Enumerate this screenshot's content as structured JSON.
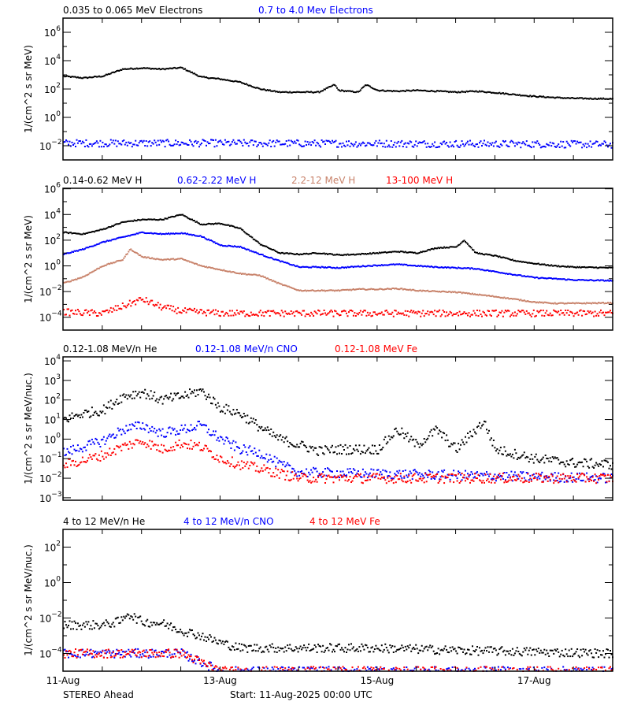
{
  "footer": {
    "mission": "STEREO Ahead",
    "start": "Start: 11-Aug-2025 00:00 UTC"
  },
  "x_axis": {
    "range_days": [
      0,
      7
    ],
    "tick_labels": [
      "11-Aug",
      "13-Aug",
      "15-Aug",
      "17-Aug"
    ],
    "tick_days": [
      0,
      2,
      4,
      6
    ],
    "minor_step_days": 0.5
  },
  "chart_data": [
    {
      "type": "scatter",
      "yscale": "log",
      "ylim": [
        0.001,
        10000000.0
      ],
      "ylabel": "1/(cm^2 s sr MeV)",
      "ytick_exponents": [
        6,
        4,
        2,
        0,
        -2
      ],
      "minor_exponents": [
        7,
        5,
        3,
        1,
        -1
      ],
      "series": [
        {
          "name": "0.035 to 0.065 MeV Electrons",
          "color": "#000000",
          "scatter": false,
          "points": [
            [
              0,
              800
            ],
            [
              0.25,
              600
            ],
            [
              0.5,
              800
            ],
            [
              0.75,
              2500
            ],
            [
              1,
              3000
            ],
            [
              1.25,
              2500
            ],
            [
              1.5,
              3200
            ],
            [
              1.75,
              700
            ],
            [
              2,
              500
            ],
            [
              2.25,
              300
            ],
            [
              2.5,
              100
            ],
            [
              2.75,
              60
            ],
            [
              3,
              60
            ],
            [
              3.25,
              60
            ],
            [
              3.45,
              200
            ],
            [
              3.5,
              80
            ],
            [
              3.75,
              60
            ],
            [
              3.85,
              200
            ],
            [
              4,
              80
            ],
            [
              4.25,
              70
            ],
            [
              4.5,
              80
            ],
            [
              4.75,
              70
            ],
            [
              5,
              60
            ],
            [
              5.25,
              70
            ],
            [
              5.5,
              55
            ],
            [
              5.75,
              40
            ],
            [
              6,
              30
            ],
            [
              6.25,
              25
            ],
            [
              6.5,
              22
            ],
            [
              7,
              20
            ]
          ]
        },
        {
          "name": "0.7 to 4.0 Mev Electrons",
          "color": "#0000ff",
          "scatter": true,
          "points": [
            [
              0,
              0.015
            ],
            [
              2,
              0.015
            ],
            [
              4,
              0.014
            ],
            [
              6,
              0.013
            ],
            [
              7,
              0.012
            ]
          ]
        }
      ]
    },
    {
      "type": "scatter",
      "yscale": "log",
      "ylim": [
        1e-05,
        1100000.0
      ],
      "ylabel": "1/(cm^2 s sr MeV)",
      "ytick_exponents": [
        6,
        4,
        2,
        0,
        -2,
        -4
      ],
      "minor_exponents": [
        5,
        3,
        1,
        -1,
        -3
      ],
      "series": [
        {
          "name": "0.14-0.62 MeV H",
          "color": "#000000",
          "scatter": false,
          "points": [
            [
              0,
              400
            ],
            [
              0.25,
              300
            ],
            [
              0.5,
              700
            ],
            [
              0.75,
              2500
            ],
            [
              1,
              4000
            ],
            [
              1.25,
              4000
            ],
            [
              1.5,
              10000
            ],
            [
              1.75,
              1700
            ],
            [
              2,
              2000
            ],
            [
              2.25,
              800
            ],
            [
              2.5,
              50
            ],
            [
              2.75,
              10
            ],
            [
              3,
              8
            ],
            [
              3.25,
              10
            ],
            [
              3.5,
              7
            ],
            [
              3.75,
              8
            ],
            [
              4,
              10
            ],
            [
              4.25,
              13
            ],
            [
              4.5,
              10
            ],
            [
              4.75,
              25
            ],
            [
              5,
              30
            ],
            [
              5.1,
              100
            ],
            [
              5.25,
              10
            ],
            [
              5.5,
              6
            ],
            [
              5.75,
              2.5
            ],
            [
              6,
              1.5
            ],
            [
              6.25,
              1
            ],
            [
              6.5,
              0.8
            ],
            [
              7,
              0.7
            ]
          ]
        },
        {
          "name": "0.62-2.22 MeV H",
          "color": "#0000ff",
          "scatter": false,
          "points": [
            [
              0,
              8
            ],
            [
              0.25,
              20
            ],
            [
              0.5,
              70
            ],
            [
              0.75,
              170
            ],
            [
              1,
              400
            ],
            [
              1.25,
              300
            ],
            [
              1.5,
              350
            ],
            [
              1.75,
              200
            ],
            [
              2,
              40
            ],
            [
              2.25,
              30
            ],
            [
              2.5,
              8
            ],
            [
              2.75,
              2.4
            ],
            [
              3,
              0.8
            ],
            [
              3.25,
              0.8
            ],
            [
              3.5,
              0.7
            ],
            [
              3.75,
              0.9
            ],
            [
              4,
              1.1
            ],
            [
              4.25,
              1.3
            ],
            [
              4.5,
              1
            ],
            [
              4.75,
              0.8
            ],
            [
              5,
              0.7
            ],
            [
              5.25,
              0.6
            ],
            [
              5.5,
              0.35
            ],
            [
              5.75,
              0.2
            ],
            [
              6,
              0.12
            ],
            [
              6.25,
              0.1
            ],
            [
              6.5,
              0.08
            ],
            [
              7,
              0.07
            ]
          ]
        },
        {
          "name": "2.2-12 MeV H",
          "color": "#c8826a",
          "scatter": false,
          "points": [
            [
              0,
              0.045
            ],
            [
              0.25,
              0.14
            ],
            [
              0.5,
              1
            ],
            [
              0.75,
              3
            ],
            [
              0.85,
              20
            ],
            [
              1,
              5
            ],
            [
              1.25,
              3
            ],
            [
              1.5,
              3.5
            ],
            [
              1.75,
              1
            ],
            [
              2,
              0.5
            ],
            [
              2.25,
              0.25
            ],
            [
              2.5,
              0.18
            ],
            [
              2.75,
              0.04
            ],
            [
              3,
              0.012
            ],
            [
              3.25,
              0.012
            ],
            [
              3.5,
              0.012
            ],
            [
              3.75,
              0.015
            ],
            [
              4,
              0.015
            ],
            [
              4.25,
              0.017
            ],
            [
              4.5,
              0.012
            ],
            [
              4.75,
              0.01
            ],
            [
              5,
              0.009
            ],
            [
              5.25,
              0.006
            ],
            [
              5.5,
              0.004
            ],
            [
              5.75,
              0.0025
            ],
            [
              6,
              0.0015
            ],
            [
              6.25,
              0.0012
            ],
            [
              6.5,
              0.0012
            ],
            [
              7,
              0.0013
            ]
          ]
        },
        {
          "name": "13-100 MeV H",
          "color": "#ff0000",
          "scatter": true,
          "points": [
            [
              0,
              0.00025
            ],
            [
              0.5,
              0.0002
            ],
            [
              0.75,
              0.0007
            ],
            [
              1,
              0.0025
            ],
            [
              1.25,
              0.0006
            ],
            [
              1.5,
              0.0003
            ],
            [
              2,
              0.0002
            ],
            [
              7,
              0.0002
            ]
          ]
        }
      ]
    },
    {
      "type": "scatter",
      "yscale": "log",
      "ylim": [
        0.00075,
        16000.0
      ],
      "ylabel": "1/(cm^2 s sr MeV/nuc.)",
      "ytick_exponents": [
        4,
        3,
        2,
        1,
        0,
        -1,
        -2,
        -3
      ],
      "minor_exponents": [],
      "series": [
        {
          "name": "0.12-1.08 MeV/n He",
          "color": "#000000",
          "scatter": true,
          "points": [
            [
              0,
              10
            ],
            [
              0.25,
              20
            ],
            [
              0.5,
              30
            ],
            [
              0.75,
              150
            ],
            [
              1,
              250
            ],
            [
              1.25,
              100
            ],
            [
              1.5,
              150
            ],
            [
              1.75,
              300
            ],
            [
              2,
              40
            ],
            [
              2.25,
              20
            ],
            [
              2.5,
              4
            ],
            [
              2.75,
              1
            ],
            [
              3,
              0.5
            ],
            [
              3.25,
              0.25
            ],
            [
              3.5,
              0.3
            ],
            [
              3.75,
              0.3
            ],
            [
              4,
              0.3
            ],
            [
              4.25,
              3
            ],
            [
              4.5,
              0.5
            ],
            [
              4.75,
              3
            ],
            [
              5,
              0.3
            ],
            [
              5.35,
              8
            ],
            [
              5.5,
              0.3
            ],
            [
              6,
              0.1
            ],
            [
              6.5,
              0.06
            ],
            [
              7,
              0.05
            ]
          ]
        },
        {
          "name": "0.12-1.08 MeV/n CNO",
          "color": "#0000ff",
          "scatter": true,
          "points": [
            [
              0,
              0.2
            ],
            [
              0.25,
              0.4
            ],
            [
              0.5,
              0.8
            ],
            [
              0.75,
              3
            ],
            [
              1,
              5
            ],
            [
              1.25,
              2
            ],
            [
              1.5,
              3
            ],
            [
              1.75,
              5
            ],
            [
              2,
              1
            ],
            [
              2.25,
              0.3
            ],
            [
              2.5,
              0.2
            ],
            [
              2.75,
              0.05
            ],
            [
              3,
              0.02
            ],
            [
              7,
              0.01
            ]
          ]
        },
        {
          "name": "0.12-1.08 MeV Fe",
          "color": "#ff0000",
          "scatter": true,
          "points": [
            [
              0,
              0.05
            ],
            [
              0.25,
              0.08
            ],
            [
              0.5,
              0.15
            ],
            [
              0.75,
              0.4
            ],
            [
              1,
              0.8
            ],
            [
              1.25,
              0.3
            ],
            [
              1.5,
              0.6
            ],
            [
              1.75,
              0.4
            ],
            [
              2,
              0.1
            ],
            [
              2.25,
              0.05
            ],
            [
              2.5,
              0.03
            ],
            [
              3,
              0.01
            ],
            [
              7,
              0.01
            ]
          ]
        }
      ]
    },
    {
      "type": "scatter",
      "yscale": "log",
      "ylim": [
        1e-05,
        1000.0
      ],
      "ylabel": "1/(cm^2 s sr MeV/nuc.)",
      "ytick_exponents": [
        2,
        0,
        -2,
        -4
      ],
      "minor_exponents": [
        1,
        -1,
        -3
      ],
      "series": [
        {
          "name": "4 to 12 MeV/n He",
          "color": "#000000",
          "scatter": true,
          "points": [
            [
              0,
              0.004
            ],
            [
              0.5,
              0.004
            ],
            [
              0.75,
              0.007
            ],
            [
              0.8,
              0.02
            ],
            [
              1,
              0.006
            ],
            [
              1.25,
              0.005
            ],
            [
              1.5,
              0.002
            ],
            [
              1.75,
              0.001
            ],
            [
              2,
              0.0004
            ],
            [
              2.25,
              0.0002
            ],
            [
              4,
              0.0002
            ],
            [
              5,
              0.00015
            ],
            [
              7,
              0.0001
            ]
          ]
        },
        {
          "name": "4 to 12 MeV/n CNO",
          "color": "#0000ff",
          "scatter": true,
          "points": [
            [
              0,
              0.0001
            ],
            [
              1.5,
              0.0001
            ],
            [
              2,
              1e-05
            ],
            [
              7,
              1e-05
            ]
          ]
        },
        {
          "name": "4 to 12 MeV Fe",
          "color": "#ff0000",
          "scatter": true,
          "points": [
            [
              0,
              0.0001
            ],
            [
              1.5,
              0.0001
            ],
            [
              2,
              1e-05
            ],
            [
              7,
              1e-05
            ]
          ]
        }
      ]
    }
  ]
}
